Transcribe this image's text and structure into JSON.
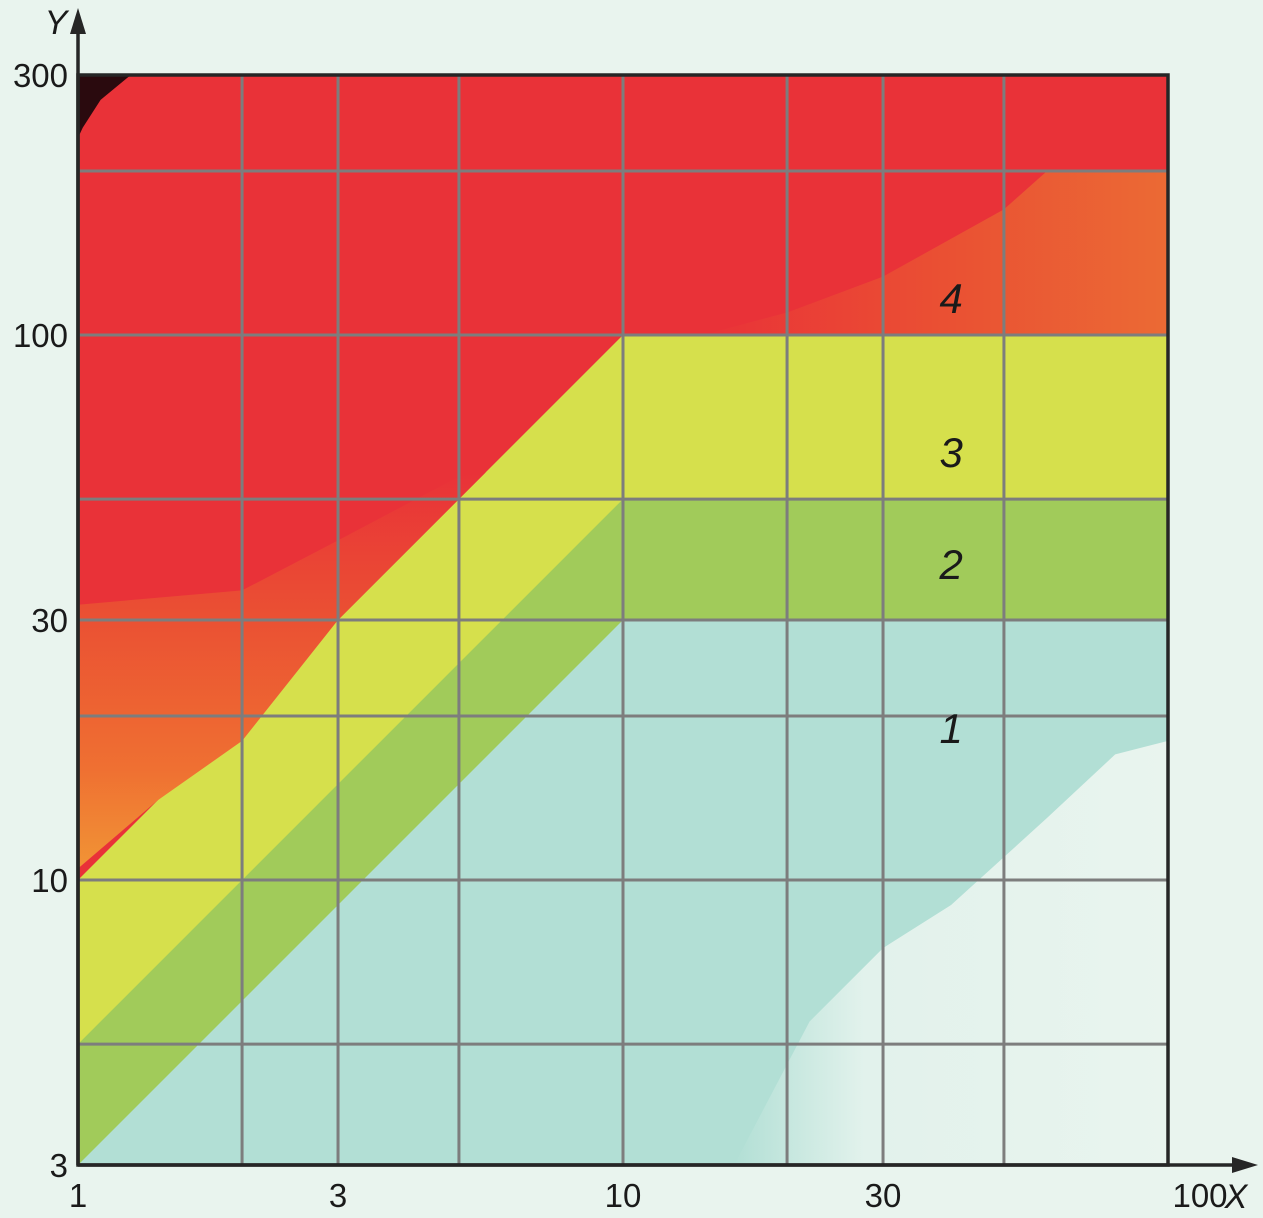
{
  "chart_data": {
    "type": "heatmap",
    "title": "",
    "xlabel": "X",
    "ylabel": "Y",
    "xscale": "log",
    "yscale": "log",
    "xlim": [
      1,
      100
    ],
    "ylim": [
      3,
      300
    ],
    "xticks": [
      1,
      3,
      10,
      30,
      100
    ],
    "yticks": [
      3,
      10,
      30,
      100,
      300
    ],
    "x_gridlines": [
      2,
      3,
      5,
      10,
      20,
      30,
      50,
      100
    ],
    "y_gridlines": [
      5,
      10,
      20,
      30,
      50,
      100,
      200,
      300
    ],
    "grid": true,
    "colors": {
      "background": "#e9f4ee",
      "zone_1": "#b2dfd5",
      "zone_2": "#a1cb5a",
      "zone_3": "#d6e04c",
      "zone_4": "#e93238",
      "orange": "#ea4f33",
      "light_orange": "#f19435",
      "dark_corner": "#2a0a0e",
      "pale": "#e9f4ee",
      "grid": "#7d7d7d"
    },
    "zones": [
      {
        "label": "1",
        "label_at": [
          40,
          19
        ],
        "boundary": "below the line Y = 3·X for X < 10, and Y < 30 for X ≥ 10"
      },
      {
        "label": "2",
        "label_at": [
          40,
          38
        ],
        "boundary": "between the lines Y = 3·X and Y = 5·X for X < 10, and 30 ≤ Y < 50 for X ≥ 10"
      },
      {
        "label": "3",
        "label_at": [
          40,
          61
        ],
        "boundary": "between the lines Y = 5·X and Y = 10·X for X < 10, and 50 ≤ Y < 100 for X ≥ 10"
      },
      {
        "label": "4",
        "label_at": [
          40,
          117
        ],
        "boundary": "above the line Y = 10·X for X < 10, and Y ≥ 100 for X ≥ 10"
      }
    ]
  }
}
